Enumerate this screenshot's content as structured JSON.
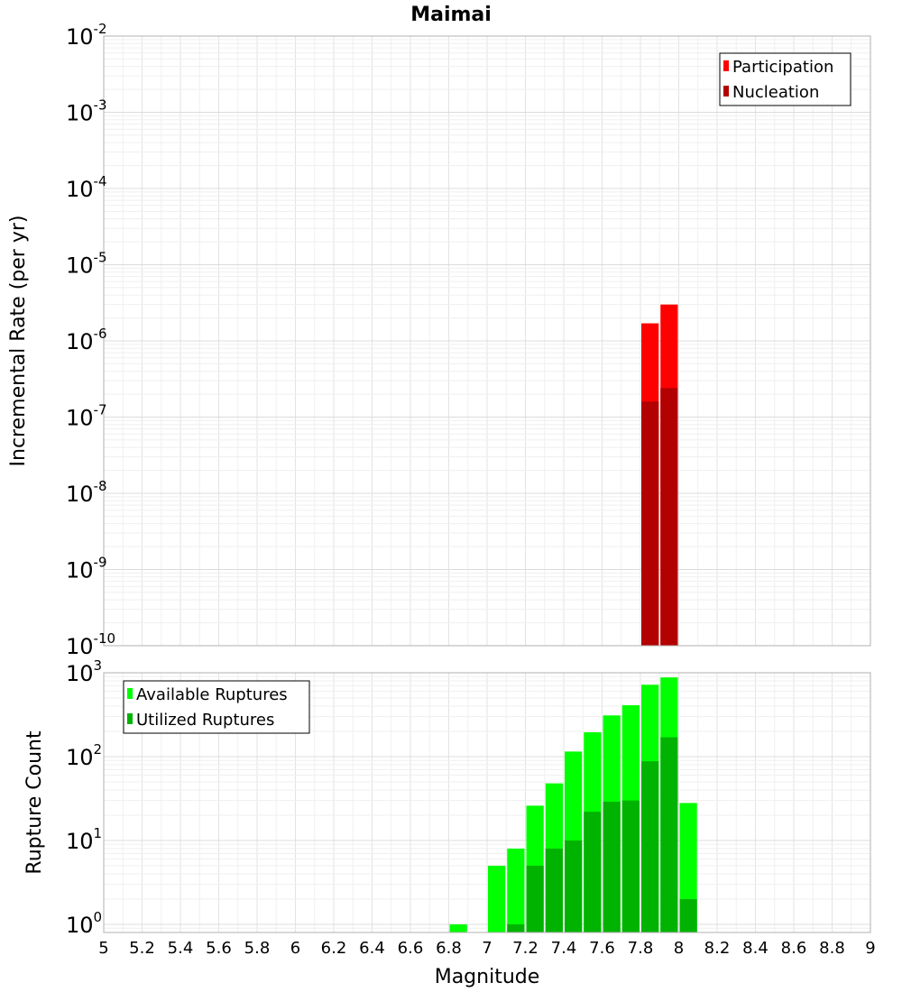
{
  "chart_data": [
    {
      "type": "bar",
      "title": "Maimai",
      "xlabel": "",
      "ylabel": "Incremental Rate (per yr)",
      "yscale": "log",
      "xlim": [
        5,
        9
      ],
      "ylim": [
        1e-10,
        0.01
      ],
      "ytick_exponents": [
        "-10",
        "-9",
        "-8",
        "-7",
        "-6",
        "-5",
        "-4",
        "-3",
        "-2"
      ],
      "grid": true,
      "legend_position": "top-right",
      "bar_width": 0.1,
      "series": [
        {
          "name": "Participation",
          "color": "#ff0000",
          "x": [
            7.85,
            7.95
          ],
          "values": [
            1.7e-06,
            3e-06
          ]
        },
        {
          "name": "Nucleation",
          "color": "#b30000",
          "x": [
            7.85,
            7.95
          ],
          "values": [
            1.6e-07,
            2.4e-07
          ]
        }
      ]
    },
    {
      "type": "bar",
      "title": "",
      "xlabel": "Magnitude",
      "ylabel": "Rupture Count",
      "yscale": "log",
      "xlim": [
        5,
        9
      ],
      "ylim": [
        0.8,
        1000
      ],
      "ytick_exponents": [
        "0",
        "1",
        "2",
        "3"
      ],
      "xticks": [
        "5",
        "5.2",
        "5.4",
        "5.6",
        "5.8",
        "6",
        "6.2",
        "6.4",
        "6.6",
        "6.8",
        "7",
        "7.2",
        "7.4",
        "7.6",
        "7.8",
        "8",
        "8.2",
        "8.4",
        "8.6",
        "8.8",
        "9"
      ],
      "grid": true,
      "legend_position": "top-left",
      "bar_width": 0.1,
      "series": [
        {
          "name": "Available Ruptures",
          "color": "#00ff00",
          "x": [
            6.85,
            7.05,
            7.15,
            7.25,
            7.35,
            7.45,
            7.55,
            7.65,
            7.75,
            7.85,
            7.95,
            8.05
          ],
          "values": [
            1,
            5,
            8,
            26,
            48,
            115,
            195,
            310,
            410,
            720,
            880,
            28
          ]
        },
        {
          "name": "Utilized Ruptures",
          "color": "#00b300",
          "x": [
            7.15,
            7.25,
            7.35,
            7.45,
            7.55,
            7.65,
            7.75,
            7.85,
            7.95,
            8.05
          ],
          "values": [
            1,
            5,
            8,
            10,
            22,
            29,
            30,
            88,
            170,
            2
          ]
        }
      ]
    }
  ]
}
